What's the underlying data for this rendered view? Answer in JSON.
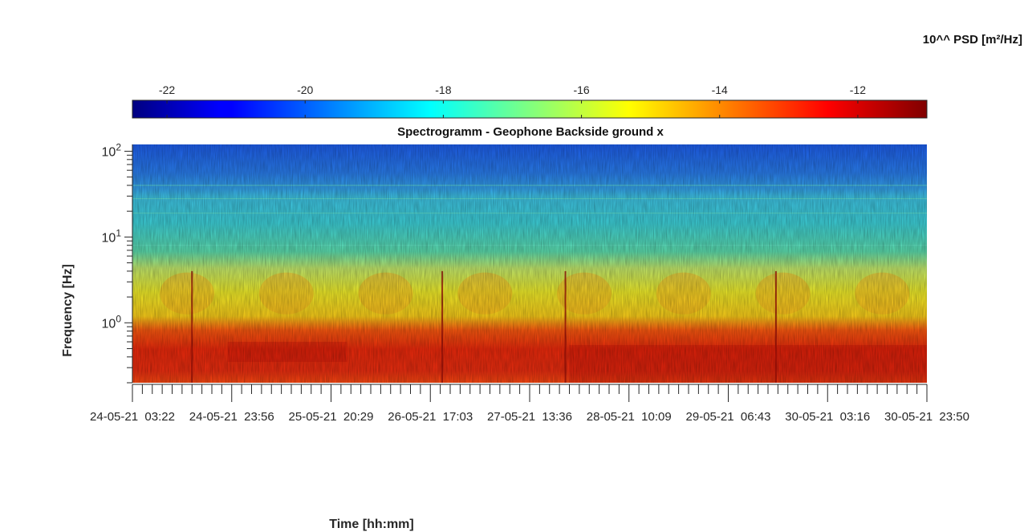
{
  "chart_data": {
    "type": "heatmap",
    "title": "Spectrogramm - Geophone Backside ground x",
    "xlabel": "Time [hh:mm]",
    "ylabel": "Frequency [Hz]",
    "y_scale": "log",
    "y_range_hz": [
      0.2,
      120
    ],
    "y_tick_values": [
      1,
      10,
      100
    ],
    "y_tick_labels": [
      {
        "base": "10",
        "exp": "0"
      },
      {
        "base": "10",
        "exp": "1"
      },
      {
        "base": "10",
        "exp": "2"
      }
    ],
    "x_tick_labels": [
      "24-05-21  03:22",
      "24-05-21  23:56",
      "25-05-21  20:29",
      "26-05-21  17:03",
      "27-05-21  13:36",
      "28-05-21  10:09",
      "29-05-21  06:43",
      "30-05-21  03:16",
      "30-05-21  23:50"
    ],
    "colorbar": {
      "label": "10^^ PSD [m²/Hz]",
      "range": [
        -22.5,
        -11
      ],
      "tick_values": [
        -22,
        -20,
        -18,
        -16,
        -14,
        -12
      ],
      "colormap": "jet",
      "placement": "top"
    },
    "frequency_bands": [
      {
        "f_low": 40,
        "f_high": 120,
        "log_psd": -20.8
      },
      {
        "f_low": 8,
        "f_high": 40,
        "log_psd": -18.3
      },
      {
        "f_low": 1,
        "f_high": 8,
        "log_psd": -15.8
      },
      {
        "f_low": 0.2,
        "f_high": 1,
        "log_psd": -12.2
      }
    ]
  }
}
